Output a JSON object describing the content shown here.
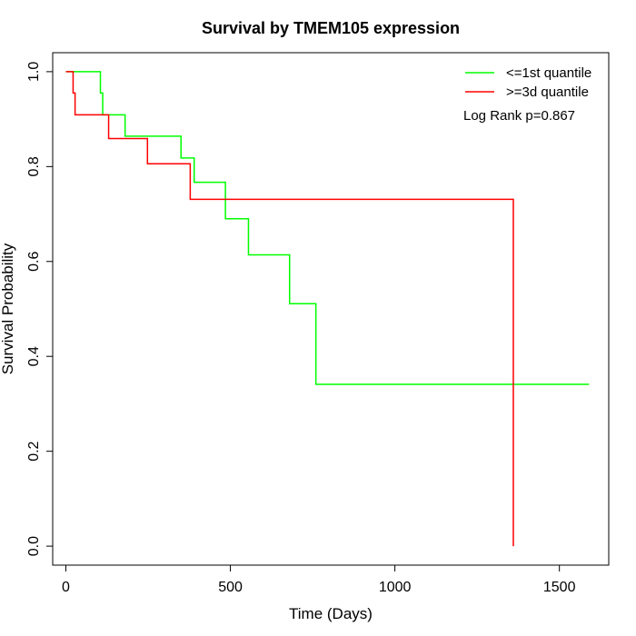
{
  "chart_data": {
    "type": "line",
    "title": "Survival by TMEM105 expression",
    "xlabel": "Time (Days)",
    "ylabel": "Survival Probability",
    "xlim": [
      -40,
      1650
    ],
    "ylim": [
      -0.04,
      1.04
    ],
    "x_ticks": [
      0,
      500,
      1000,
      1500
    ],
    "y_ticks": [
      0.0,
      0.2,
      0.4,
      0.6,
      0.8,
      1.0
    ],
    "x_tick_labels": [
      "0",
      "500",
      "1000",
      "1500"
    ],
    "y_tick_labels": [
      "0.0",
      "0.2",
      "0.4",
      "0.6",
      "0.8",
      "1.0"
    ],
    "grid": false,
    "legend_position": "top-right",
    "annotation": "Log Rank p=0.867",
    "series": [
      {
        "name": "<=1st quantile",
        "color": "#00ff00",
        "steps": [
          [
            0,
            1.0
          ],
          [
            105,
            0.955
          ],
          [
            112,
            0.909
          ],
          [
            180,
            0.864
          ],
          [
            350,
            0.818
          ],
          [
            390,
            0.767
          ],
          [
            485,
            0.69
          ],
          [
            555,
            0.614
          ],
          [
            680,
            0.511
          ],
          [
            760,
            0.341
          ],
          [
            1590,
            0.341
          ]
        ]
      },
      {
        "name": ">=3d quantile",
        "color": "#ff0000",
        "steps": [
          [
            0,
            1.0
          ],
          [
            22,
            0.955
          ],
          [
            28,
            0.909
          ],
          [
            130,
            0.859
          ],
          [
            248,
            0.806
          ],
          [
            378,
            0.731
          ],
          [
            1360,
            0.0
          ]
        ]
      }
    ]
  }
}
